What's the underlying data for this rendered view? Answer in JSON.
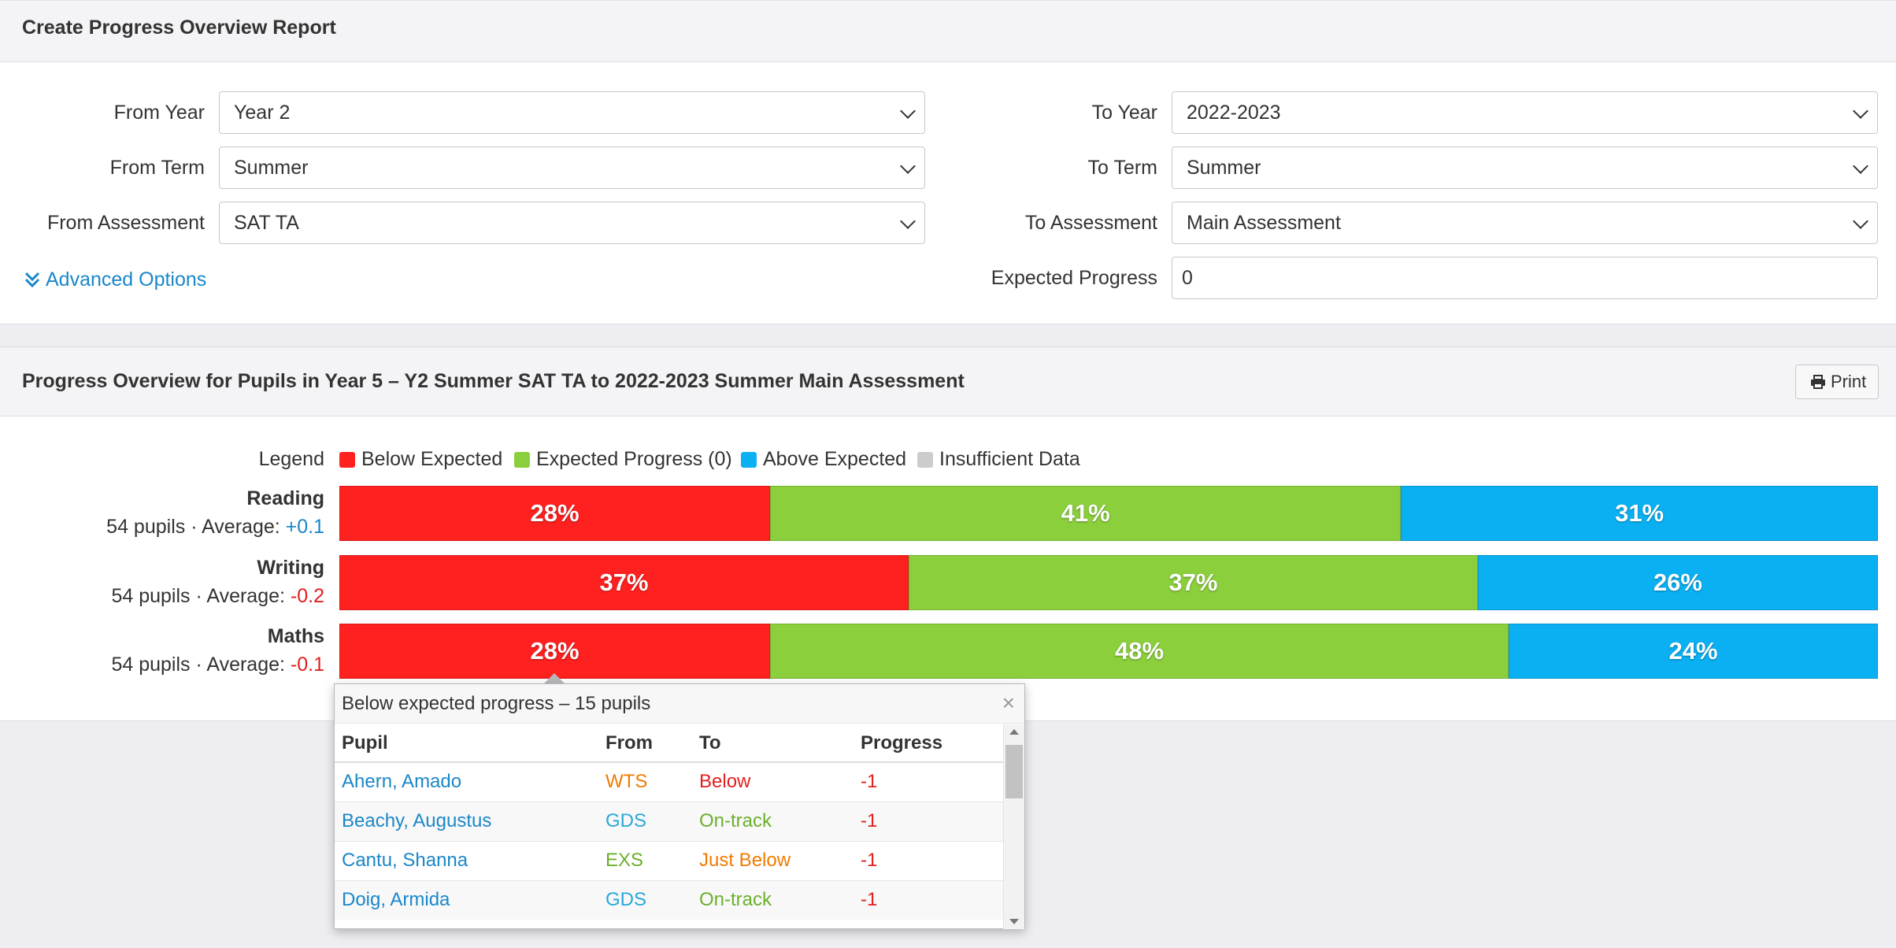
{
  "header": {
    "title": "Create Progress Overview Report"
  },
  "form": {
    "from_year": {
      "label": "From Year",
      "value": "Year 2"
    },
    "from_term": {
      "label": "From Term",
      "value": "Summer"
    },
    "from_assessment": {
      "label": "From Assessment",
      "value": "SAT TA"
    },
    "to_year": {
      "label": "To Year",
      "value": "2022-2023"
    },
    "to_term": {
      "label": "To Term",
      "value": "Summer"
    },
    "to_assessment": {
      "label": "To Assessment",
      "value": "Main Assessment"
    },
    "expected_progress": {
      "label": "Expected Progress",
      "value": "0"
    },
    "advanced_options": "Advanced Options"
  },
  "report": {
    "title": "Progress Overview for Pupils in Year 5 – Y2 Summer SAT TA to 2022-2023 Summer Main Assessment",
    "print_label": "Print",
    "legend": {
      "label": "Legend",
      "items": [
        {
          "label": "Below Expected",
          "color": "#ff2020"
        },
        {
          "label": "Expected Progress (0)",
          "color": "#8bcf3c"
        },
        {
          "label": "Above Expected",
          "color": "#0ab0f2"
        },
        {
          "label": "Insufficient Data",
          "color": "#cccccc"
        }
      ]
    },
    "subjects": [
      {
        "name": "Reading",
        "stats": "54 pupils · Average: ",
        "average": "+0.1",
        "below": 28,
        "expected": 41,
        "above": 31,
        "below_label": "28%",
        "expected_label": "41%",
        "above_label": "31%"
      },
      {
        "name": "Writing",
        "stats": "54 pupils · Average: ",
        "average": "-0.2",
        "below": 37,
        "expected": 37,
        "above": 26,
        "below_label": "37%",
        "expected_label": "37%",
        "above_label": "26%"
      },
      {
        "name": "Maths",
        "stats": "54 pupils · Average: ",
        "average": "-0.1",
        "below": 28,
        "expected": 48,
        "above": 24,
        "below_label": "28%",
        "expected_label": "48%",
        "above_label": "24%"
      }
    ]
  },
  "popover": {
    "title": "Below expected progress – 15 pupils",
    "close": "×",
    "columns": [
      "Pupil",
      "From",
      "To",
      "Progress"
    ],
    "rows": [
      {
        "pupil": "Ahern, Amado",
        "from": "WTS",
        "to": "Below",
        "progress": "-1"
      },
      {
        "pupil": "Beachy, Augustus",
        "from": "GDS",
        "to": "On-track",
        "progress": "-1"
      },
      {
        "pupil": "Cantu, Shanna",
        "from": "EXS",
        "to": "Just Below",
        "progress": "-1"
      },
      {
        "pupil": "Doig, Armida",
        "from": "GDS",
        "to": "On-track",
        "progress": "-1"
      }
    ]
  }
}
